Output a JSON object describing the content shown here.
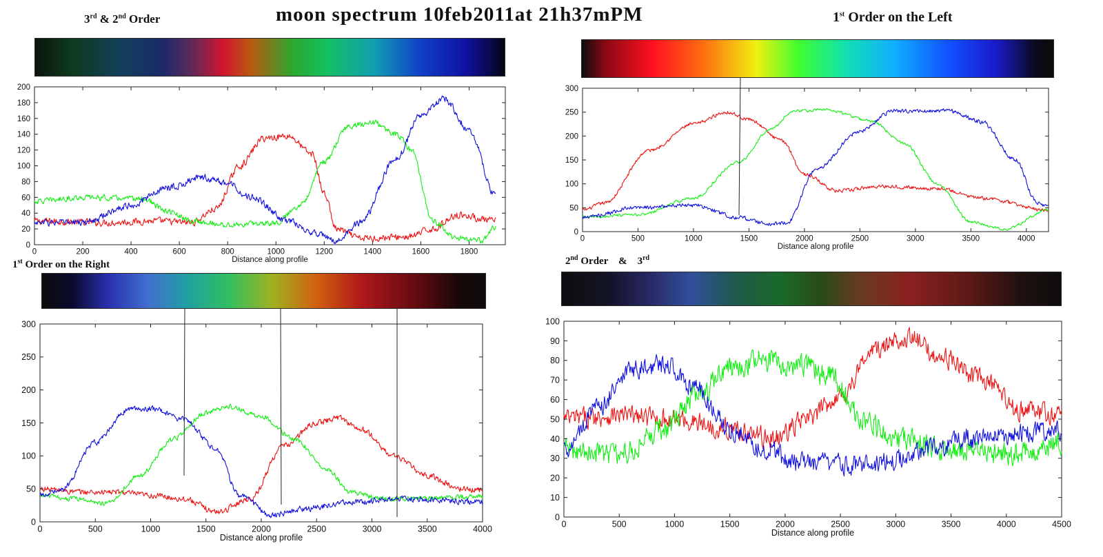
{
  "page": {
    "title": "moon spectrum 10feb2011at 21h37mPM",
    "labels": {
      "top_left": {
        "main": "3",
        "sup1": "rd",
        "mid": " & 2",
        "sup2": "nd",
        "end": " Order"
      },
      "top_right": {
        "main": "1",
        "sup1": "st",
        "end": " Order on the Left"
      },
      "bottom_left": {
        "main": "1",
        "sup1": "st",
        "end": " Order on the Right"
      },
      "bottom_right": {
        "main": "2",
        "sup1": "nd",
        "mid": " Order    &    3",
        "sup2": "rd"
      }
    },
    "colors": {
      "red": "#ee1111",
      "green": "#11ee11",
      "blue": "#1111dd",
      "axis": "#222222"
    }
  },
  "chart_data": [
    {
      "id": "c1",
      "type": "line",
      "title": "3rd & 2nd Order",
      "xlabel": "Distance along profile",
      "ylabel": "",
      "xlim": [
        0,
        1950
      ],
      "ylim": [
        0,
        200
      ],
      "xticks": [
        0,
        200,
        400,
        600,
        800,
        1000,
        1200,
        1400,
        1600,
        1800
      ],
      "yticks": [
        0,
        20,
        40,
        60,
        80,
        100,
        120,
        140,
        160,
        180,
        200
      ],
      "xmax": 1910,
      "series": [
        {
          "name": "red",
          "color": "#ee1111",
          "noise": 6,
          "points": [
            [
              0,
              30
            ],
            [
              300,
              28
            ],
            [
              500,
              30
            ],
            [
              650,
              28
            ],
            [
              750,
              45
            ],
            [
              850,
              100
            ],
            [
              950,
              135
            ],
            [
              1050,
              138
            ],
            [
              1150,
              115
            ],
            [
              1200,
              65
            ],
            [
              1250,
              20
            ],
            [
              1350,
              8
            ],
            [
              1550,
              10
            ],
            [
              1650,
              20
            ],
            [
              1750,
              38
            ],
            [
              1910,
              30
            ]
          ]
        },
        {
          "name": "green",
          "color": "#11ee11",
          "noise": 5,
          "points": [
            [
              0,
              55
            ],
            [
              200,
              60
            ],
            [
              450,
              58
            ],
            [
              550,
              42
            ],
            [
              650,
              30
            ],
            [
              800,
              25
            ],
            [
              1000,
              28
            ],
            [
              1100,
              50
            ],
            [
              1200,
              105
            ],
            [
              1300,
              150
            ],
            [
              1400,
              155
            ],
            [
              1500,
              140
            ],
            [
              1560,
              120
            ],
            [
              1650,
              30
            ],
            [
              1750,
              8
            ],
            [
              1850,
              5
            ],
            [
              1910,
              22
            ]
          ]
        },
        {
          "name": "blue",
          "color": "#1111dd",
          "noise": 6,
          "points": [
            [
              0,
              28
            ],
            [
              200,
              28
            ],
            [
              400,
              50
            ],
            [
              550,
              72
            ],
            [
              700,
              85
            ],
            [
              800,
              78
            ],
            [
              900,
              60
            ],
            [
              1050,
              30
            ],
            [
              1150,
              15
            ],
            [
              1250,
              5
            ],
            [
              1350,
              28
            ],
            [
              1500,
              110
            ],
            [
              1600,
              165
            ],
            [
              1700,
              185
            ],
            [
              1800,
              145
            ],
            [
              1910,
              62
            ]
          ]
        }
      ]
    },
    {
      "id": "c2",
      "type": "line",
      "title": "1st Order on the Left",
      "xlabel": "Distance along profile",
      "ylabel": "",
      "xlim": [
        0,
        4200
      ],
      "ylim": [
        0,
        300
      ],
      "xticks": [
        0,
        500,
        1000,
        1500,
        2000,
        2500,
        3000,
        3500,
        4000
      ],
      "yticks": [
        0,
        50,
        100,
        150,
        200,
        250,
        300
      ],
      "xmax": 4200,
      "series": [
        {
          "name": "red",
          "color": "#ee1111",
          "noise": 5,
          "points": [
            [
              0,
              45
            ],
            [
              200,
              60
            ],
            [
              600,
              170
            ],
            [
              1000,
              225
            ],
            [
              1300,
              250
            ],
            [
              1500,
              235
            ],
            [
              1800,
              190
            ],
            [
              2000,
              120
            ],
            [
              2300,
              85
            ],
            [
              2700,
              95
            ],
            [
              3200,
              90
            ],
            [
              3600,
              70
            ],
            [
              4200,
              45
            ]
          ]
        },
        {
          "name": "green",
          "color": "#11ee11",
          "noise": 4,
          "points": [
            [
              0,
              30
            ],
            [
              500,
              35
            ],
            [
              1000,
              70
            ],
            [
              1400,
              145
            ],
            [
              1700,
              215
            ],
            [
              1900,
              252
            ],
            [
              2200,
              255
            ],
            [
              2600,
              232
            ],
            [
              2900,
              185
            ],
            [
              3200,
              100
            ],
            [
              3500,
              20
            ],
            [
              3800,
              5
            ],
            [
              4200,
              45
            ]
          ]
        },
        {
          "name": "blue",
          "color": "#1111dd",
          "noise": 6,
          "points": [
            [
              0,
              30
            ],
            [
              500,
              50
            ],
            [
              1000,
              55
            ],
            [
              1400,
              30
            ],
            [
              1700,
              15
            ],
            [
              1850,
              20
            ],
            [
              2100,
              130
            ],
            [
              2500,
              210
            ],
            [
              2800,
              252
            ],
            [
              3300,
              253
            ],
            [
              3600,
              230
            ],
            [
              3900,
              150
            ],
            [
              4100,
              60
            ],
            [
              4200,
              50
            ]
          ]
        }
      ]
    },
    {
      "id": "c3",
      "type": "line",
      "title": "1st Order on the Right",
      "xlabel": "Distance along profile",
      "ylabel": "",
      "xlim": [
        0,
        4000
      ],
      "ylim": [
        0,
        300
      ],
      "xticks": [
        0,
        500,
        1000,
        1500,
        2000,
        2500,
        3000,
        3500,
        4000
      ],
      "yticks": [
        0,
        50,
        100,
        150,
        200,
        250,
        300
      ],
      "xmax": 4000,
      "series": [
        {
          "name": "red",
          "color": "#ee1111",
          "noise": 6,
          "points": [
            [
              0,
              50
            ],
            [
              400,
              45
            ],
            [
              700,
              45
            ],
            [
              1000,
              40
            ],
            [
              1300,
              35
            ],
            [
              1600,
              15
            ],
            [
              1900,
              35
            ],
            [
              2200,
              115
            ],
            [
              2500,
              150
            ],
            [
              2700,
              158
            ],
            [
              2900,
              140
            ],
            [
              3200,
              100
            ],
            [
              3500,
              70
            ],
            [
              3800,
              50
            ],
            [
              4000,
              48
            ]
          ]
        },
        {
          "name": "green",
          "color": "#11ee11",
          "noise": 5,
          "points": [
            [
              0,
              40
            ],
            [
              300,
              35
            ],
            [
              600,
              28
            ],
            [
              900,
              70
            ],
            [
              1200,
              125
            ],
            [
              1500,
              165
            ],
            [
              1700,
              175
            ],
            [
              2000,
              160
            ],
            [
              2300,
              125
            ],
            [
              2600,
              80
            ],
            [
              2800,
              45
            ],
            [
              3100,
              35
            ],
            [
              4000,
              38
            ]
          ]
        },
        {
          "name": "blue",
          "color": "#1111dd",
          "noise": 6,
          "points": [
            [
              0,
              40
            ],
            [
              200,
              50
            ],
            [
              500,
              120
            ],
            [
              800,
              170
            ],
            [
              1000,
              172
            ],
            [
              1300,
              155
            ],
            [
              1600,
              110
            ],
            [
              1800,
              40
            ],
            [
              2100,
              10
            ],
            [
              2400,
              20
            ],
            [
              2800,
              30
            ],
            [
              3300,
              35
            ],
            [
              4000,
              30
            ]
          ]
        }
      ]
    },
    {
      "id": "c4",
      "type": "line",
      "title": "2nd Order & 3rd",
      "xlabel": "Distance along profile",
      "ylabel": "",
      "xlim": [
        0,
        4500
      ],
      "ylim": [
        0,
        100
      ],
      "xticks": [
        0,
        500,
        1000,
        1500,
        2000,
        2500,
        3000,
        3500,
        4000,
        4500
      ],
      "yticks": [
        0,
        10,
        20,
        30,
        40,
        50,
        60,
        70,
        80,
        90,
        100
      ],
      "xmax": 4500,
      "series": [
        {
          "name": "red",
          "color": "#ee1111",
          "noise": 7,
          "points": [
            [
              0,
              50
            ],
            [
              500,
              52
            ],
            [
              1000,
              50
            ],
            [
              1500,
              45
            ],
            [
              1900,
              40
            ],
            [
              2200,
              50
            ],
            [
              2500,
              62
            ],
            [
              2800,
              85
            ],
            [
              3100,
              92
            ],
            [
              3400,
              82
            ],
            [
              3800,
              70
            ],
            [
              4100,
              55
            ],
            [
              4500,
              52
            ]
          ]
        },
        {
          "name": "green",
          "color": "#11ee11",
          "noise": 8,
          "points": [
            [
              0,
              35
            ],
            [
              500,
              32
            ],
            [
              900,
              45
            ],
            [
              1200,
              62
            ],
            [
              1500,
              75
            ],
            [
              1800,
              80
            ],
            [
              2100,
              78
            ],
            [
              2400,
              72
            ],
            [
              2700,
              50
            ],
            [
              3000,
              40
            ],
            [
              3500,
              35
            ],
            [
              4000,
              32
            ],
            [
              4500,
              37
            ]
          ]
        },
        {
          "name": "blue",
          "color": "#1111dd",
          "noise": 7,
          "points": [
            [
              0,
              35
            ],
            [
              300,
              55
            ],
            [
              600,
              75
            ],
            [
              900,
              78
            ],
            [
              1200,
              65
            ],
            [
              1500,
              45
            ],
            [
              1800,
              35
            ],
            [
              2100,
              28
            ],
            [
              2500,
              27
            ],
            [
              2900,
              28
            ],
            [
              3300,
              35
            ],
            [
              3700,
              40
            ],
            [
              4100,
              43
            ],
            [
              4500,
              45
            ]
          ]
        }
      ]
    }
  ]
}
